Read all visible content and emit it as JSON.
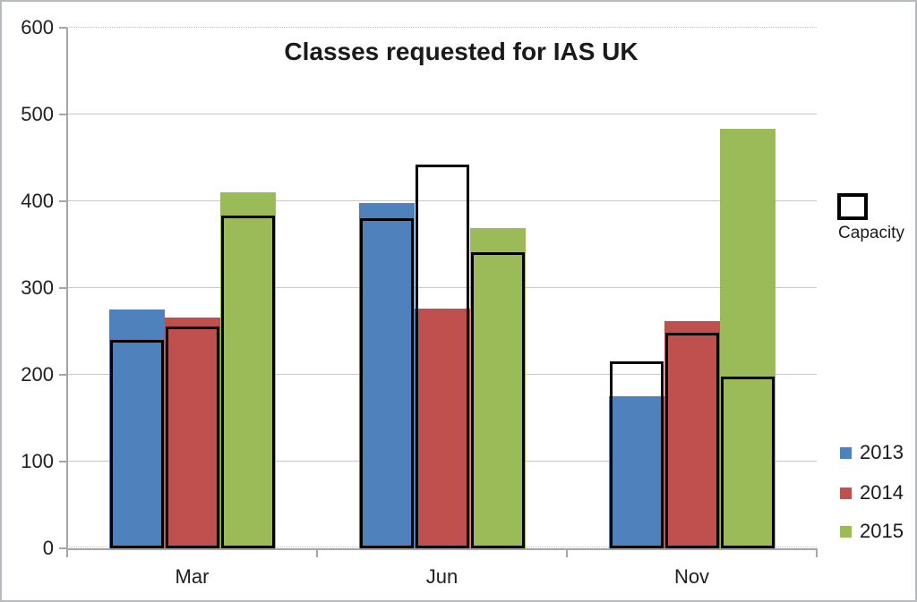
{
  "title": "Classes requested for IAS UK",
  "legend": {
    "capacity_label": "Capacity",
    "items": [
      {
        "label": "2013",
        "color": "#4F81BD"
      },
      {
        "label": "2014",
        "color": "#C0504D"
      },
      {
        "label": "2015",
        "color": "#9BBB59"
      }
    ]
  },
  "axes": {
    "y_tick_labels": [
      "0",
      "100",
      "200",
      "300",
      "400",
      "500",
      "600"
    ],
    "x_labels": [
      "Mar",
      "Jun",
      "Nov"
    ]
  },
  "colors": {
    "series_2013": "#4F81BD",
    "series_2014": "#C0504D",
    "series_2015": "#9BBB59",
    "capacity_outline": "#000000",
    "gridline": "#c9c9c9",
    "axis": "#a6a6a6"
  },
  "chart_data": {
    "type": "bar",
    "title": "Classes requested for IAS UK",
    "categories": [
      "Mar",
      "Jun",
      "Nov"
    ],
    "series": [
      {
        "name": "2013",
        "color": "#4F81BD",
        "values": [
          275,
          398,
          175
        ],
        "capacity": [
          240,
          380,
          215
        ]
      },
      {
        "name": "2014",
        "color": "#C0504D",
        "values": [
          266,
          276,
          262
        ],
        "capacity": [
          256,
          442,
          248
        ]
      },
      {
        "name": "2015",
        "color": "#9BBB59",
        "values": [
          410,
          369,
          483
        ],
        "capacity": [
          383,
          341,
          198
        ]
      }
    ],
    "overlay_series": {
      "name": "Capacity",
      "fill": "none",
      "outline_color": "#000000"
    },
    "xlabel": "",
    "ylabel": "",
    "ylim": [
      0,
      600
    ],
    "yticks": [
      0,
      100,
      200,
      300,
      400,
      500,
      600
    ],
    "grid": true,
    "legend_position": "right"
  }
}
